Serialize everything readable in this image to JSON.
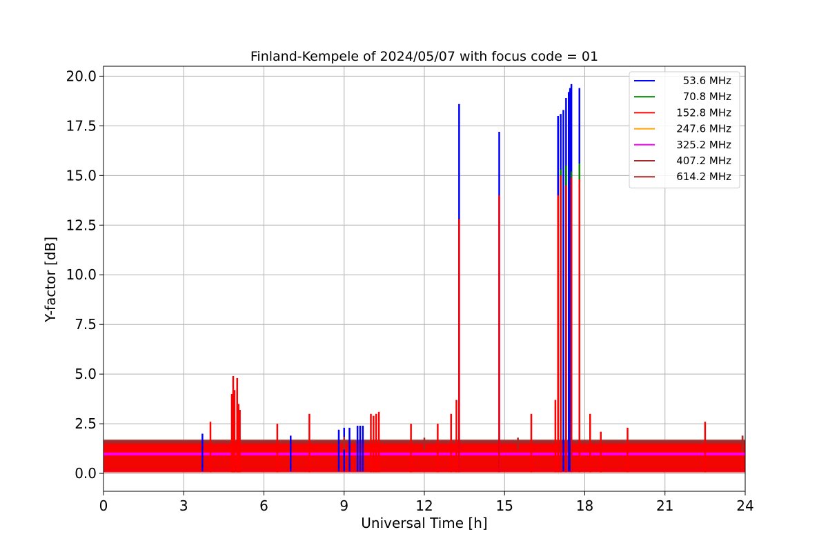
{
  "chart_data": {
    "type": "line",
    "title": "Finland-Kempele of 2024/05/07 with focus code = 01",
    "xlabel": "Universal Time [h]",
    "ylabel": "Y-factor [dB]",
    "xlim": [
      0,
      24
    ],
    "ylim": [
      -0.9,
      20.5
    ],
    "xticks": [
      0,
      3,
      6,
      9,
      12,
      15,
      18,
      21,
      24
    ],
    "xtick_labels": [
      "0",
      "3",
      "6",
      "9",
      "12",
      "15",
      "18",
      "21",
      "24"
    ],
    "yticks": [
      0,
      2.5,
      5,
      7.5,
      10,
      12.5,
      15,
      17.5,
      20
    ],
    "ytick_labels": [
      "0.0",
      "2.5",
      "5.0",
      "7.5",
      "10.0",
      "12.5",
      "15.0",
      "17.5",
      "20.0"
    ],
    "grid": true,
    "legend_position": "top-right",
    "series": [
      {
        "name": "53.6 MHz",
        "color": "#0000ff",
        "baseline": [
          0.1,
          1.6
        ],
        "spikes": [
          [
            3.7,
            2.0
          ],
          [
            4.9,
            0.3
          ],
          [
            5.0,
            0.3
          ],
          [
            7.0,
            1.9
          ],
          [
            8.8,
            2.2
          ],
          [
            9.0,
            2.3
          ],
          [
            9.2,
            2.3
          ],
          [
            9.5,
            2.4
          ],
          [
            9.6,
            2.4
          ],
          [
            9.7,
            2.4
          ],
          [
            13.3,
            18.6
          ],
          [
            14.8,
            17.2
          ],
          [
            17.0,
            18.0
          ],
          [
            17.1,
            18.1
          ],
          [
            17.2,
            18.3
          ],
          [
            17.3,
            18.9
          ],
          [
            17.4,
            19.2
          ],
          [
            17.45,
            19.4
          ],
          [
            17.5,
            19.6
          ],
          [
            17.8,
            19.4
          ]
        ]
      },
      {
        "name": "70.8 MHz",
        "color": "#008000",
        "baseline": [
          0.3,
          1.5
        ],
        "spikes": [
          [
            4.85,
            3.3
          ],
          [
            5.0,
            3.2
          ],
          [
            17.1,
            15.3
          ],
          [
            17.3,
            15.5
          ],
          [
            17.5,
            15.2
          ],
          [
            17.8,
            15.6
          ]
        ]
      },
      {
        "name": "152.8 MHz",
        "color": "#ff0000",
        "baseline": [
          0.05,
          1.5
        ],
        "spikes": [
          [
            4.0,
            2.6
          ],
          [
            4.8,
            4.0
          ],
          [
            4.85,
            4.9
          ],
          [
            4.9,
            4.2
          ],
          [
            5.0,
            4.8
          ],
          [
            5.05,
            3.5
          ],
          [
            5.1,
            3.2
          ],
          [
            6.5,
            2.5
          ],
          [
            7.7,
            3.0
          ],
          [
            10.0,
            3.0
          ],
          [
            10.1,
            2.9
          ],
          [
            10.2,
            3.0
          ],
          [
            10.3,
            3.1
          ],
          [
            11.5,
            2.5
          ],
          [
            12.5,
            2.5
          ],
          [
            13.0,
            3.0
          ],
          [
            13.2,
            3.7
          ],
          [
            13.3,
            12.8
          ],
          [
            14.8,
            14.0
          ],
          [
            16.0,
            3.0
          ],
          [
            16.9,
            3.7
          ],
          [
            17.0,
            14.0
          ],
          [
            17.1,
            15.0
          ],
          [
            17.3,
            14.5
          ],
          [
            17.5,
            14.9
          ],
          [
            17.8,
            14.8
          ],
          [
            18.2,
            3.0
          ],
          [
            18.6,
            2.1
          ],
          [
            19.6,
            2.3
          ],
          [
            22.5,
            2.6
          ]
        ]
      },
      {
        "name": "247.6 MHz",
        "color": "#ffa500",
        "baseline": [
          1.0,
          1.15
        ],
        "spikes": []
      },
      {
        "name": "325.2 MHz",
        "color": "#ff00ff",
        "baseline": [
          0.9,
          1.05
        ],
        "spikes": []
      },
      {
        "name": "407.2 MHz",
        "color": "#a52a2a",
        "baseline": [
          1.2,
          1.7
        ],
        "spikes": [
          [
            9.0,
            1.85
          ],
          [
            12.0,
            1.8
          ],
          [
            15.5,
            1.8
          ],
          [
            23.9,
            1.9
          ]
        ]
      },
      {
        "name": "614.2 MHz",
        "color": "#a52a2a",
        "baseline": [
          1.1,
          1.65
        ],
        "spikes": [
          [
            23.9,
            1.9
          ]
        ]
      }
    ],
    "legend_entries": [
      "53.6 MHz",
      "70.8 MHz",
      "152.8 MHz",
      "247.6 MHz",
      "325.2 MHz",
      "407.2 MHz",
      "614.2 MHz"
    ]
  }
}
